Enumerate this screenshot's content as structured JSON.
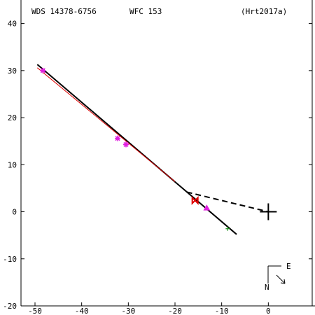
{
  "header": {
    "wds": "WDS 14378-6756",
    "disc": "WFC 153",
    "ref": "(Hrt2017a)"
  },
  "compass": {
    "east_label": "E",
    "north_label": "N"
  },
  "chart_data": {
    "type": "scatter",
    "xlim": [
      -53,
      10
    ],
    "ylim": [
      -20,
      45
    ],
    "x_ticks": [
      -50,
      -40,
      -30,
      -20,
      -10,
      0
    ],
    "y_ticks": [
      -20,
      -10,
      0,
      10,
      20,
      30,
      40
    ],
    "grid": false,
    "series": [
      {
        "marker": "asterisk",
        "color": "#e020e0",
        "points": [
          [
            -48.3,
            30.0
          ],
          [
            -32.3,
            15.6
          ],
          [
            -30.5,
            14.3
          ]
        ]
      },
      {
        "marker": "triangle",
        "color": "#e020e0",
        "points": [
          [
            -13.2,
            0.8
          ]
        ]
      },
      {
        "marker": "bowtie",
        "color": "#e00000",
        "points": [
          [
            -15.7,
            2.4
          ]
        ]
      },
      {
        "marker": "plus-small",
        "color": "#209020",
        "points": [
          [
            -8.7,
            -3.6
          ]
        ]
      }
    ],
    "lines": [
      {
        "style": "solid",
        "color": "#000000",
        "from": [
          -49.5,
          31.3
        ],
        "to": [
          -6.8,
          -4.8
        ]
      },
      {
        "style": "solid",
        "color": "#e00000",
        "from": [
          -49.5,
          30.6
        ],
        "to": [
          -20.0,
          6.4
        ]
      },
      {
        "style": "dashed",
        "color": "#000000",
        "from": [
          -17.5,
          4.2
        ],
        "to": [
          0.0,
          0.0
        ]
      }
    ],
    "primary": {
      "marker": "cross",
      "color": "#000000",
      "point": [
        0,
        0
      ]
    }
  }
}
